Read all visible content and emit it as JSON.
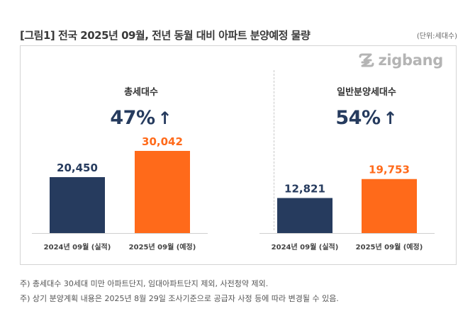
{
  "title": "[그림1] 전국 2025년 09월, 전년 동월 대비 아파트 분양예정 물량",
  "unit": "(단위:세대수)",
  "logo": {
    "text": "zigbang",
    "color": "#b4b4b4"
  },
  "colors": {
    "series_2024": "#263b5e",
    "series_2025": "#ff6a1a",
    "growth_text": "#263b5e"
  },
  "chart_data": [
    {
      "type": "bar",
      "title": "총세대수",
      "growth_label": "47%",
      "growth_arrow": "↑",
      "categories": [
        "2024년 09월 (실적)",
        "2025년 09월 (예정)"
      ],
      "values": [
        20450,
        30042
      ],
      "value_labels": [
        "20,450",
        "30,042"
      ],
      "colors": [
        "#263b5e",
        "#ff6a1a"
      ],
      "ylim": [
        0,
        30042
      ],
      "grid": false
    },
    {
      "type": "bar",
      "title": "일반분양세대수",
      "growth_label": "54%",
      "growth_arrow": "↑",
      "categories": [
        "2024년 09월 (실적)",
        "2025년 09월 (예정)"
      ],
      "values": [
        12821,
        19753
      ],
      "value_labels": [
        "12,821",
        "19,753"
      ],
      "colors": [
        "#263b5e",
        "#ff6a1a"
      ],
      "ylim": [
        0,
        30042
      ],
      "grid": false
    }
  ],
  "footnotes": [
    "주) 총세대수 30세대 미만 아파트단지, 임대아파트단지 제외, 사전청약 제외.",
    "주) 상기 분양계획 내용은 2025년 8월 29일 조사기준으로 공급자 사정 등에 따라 변경될 수 있음."
  ]
}
